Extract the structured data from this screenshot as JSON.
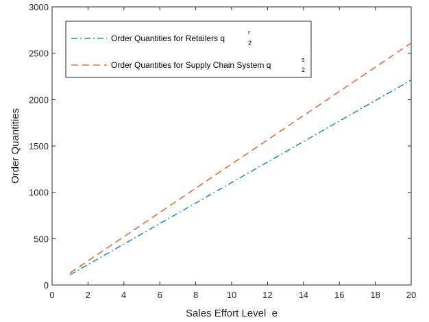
{
  "chart_data": {
    "type": "line",
    "xlabel": "Sales Effort Level  e",
    "ylabel": "Order Quantities",
    "xlim": [
      0,
      20
    ],
    "ylim": [
      0,
      3000
    ],
    "xticks": [
      0,
      2,
      4,
      6,
      8,
      10,
      12,
      14,
      16,
      18,
      20
    ],
    "yticks": [
      0,
      500,
      1000,
      1500,
      2000,
      2500,
      3000
    ],
    "grid": false,
    "legend_position": "top-left",
    "series": [
      {
        "name": "Order Quantities for Retailers",
        "name_var": "q",
        "name_sup": "r",
        "name_sub": "2",
        "color": "#0072BD",
        "style": "dash-dot",
        "x": [
          1,
          20
        ],
        "y": [
          110,
          2210
        ]
      },
      {
        "name": "Order Quantities for Supply Chain System",
        "name_var": "q",
        "name_sup": "s",
        "name_sub": "2",
        "color": "#D95319",
        "style": "dashed",
        "x": [
          1,
          20
        ],
        "y": [
          130,
          2610
        ]
      }
    ]
  }
}
